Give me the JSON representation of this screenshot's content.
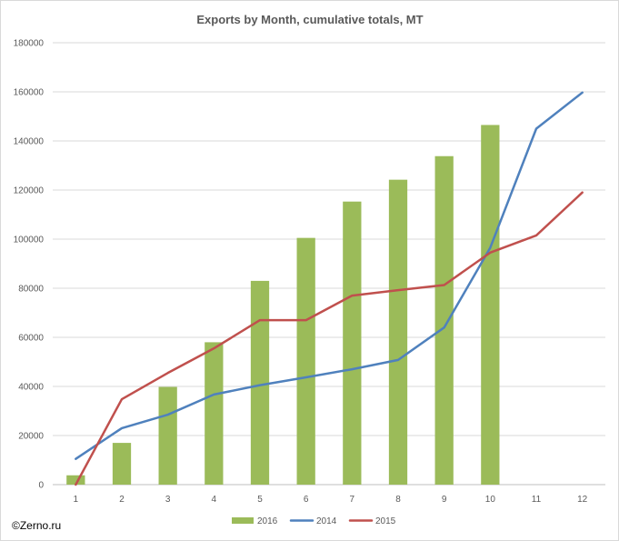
{
  "watermark": "©Zerno.ru",
  "chart_data": {
    "type": "bar",
    "title": "Exports by Month, cumulative totals, MT",
    "xlabel": "",
    "ylabel": "",
    "categories": [
      "1",
      "2",
      "3",
      "4",
      "5",
      "6",
      "7",
      "8",
      "9",
      "10",
      "11",
      "12"
    ],
    "ylim": [
      0,
      180000
    ],
    "yticks": [
      0,
      20000,
      40000,
      60000,
      80000,
      100000,
      120000,
      140000,
      160000,
      180000
    ],
    "grid": true,
    "legend_position": "bottom",
    "series": [
      {
        "name": "2016",
        "type": "bar",
        "color": "#9bbb59",
        "values": [
          3800,
          17000,
          39800,
          58000,
          83000,
          100500,
          115300,
          124200,
          133800,
          146500,
          null,
          null
        ]
      },
      {
        "name": "2014",
        "type": "line",
        "color": "#4f81bd",
        "values": [
          10500,
          23000,
          28500,
          36700,
          40500,
          43700,
          47000,
          50800,
          64000,
          96500,
          145000,
          159700
        ]
      },
      {
        "name": "2015",
        "type": "line",
        "color": "#c0504d",
        "values": [
          0,
          34800,
          45500,
          55500,
          67000,
          67000,
          77000,
          79200,
          81300,
          94500,
          101500,
          119000
        ]
      }
    ]
  }
}
